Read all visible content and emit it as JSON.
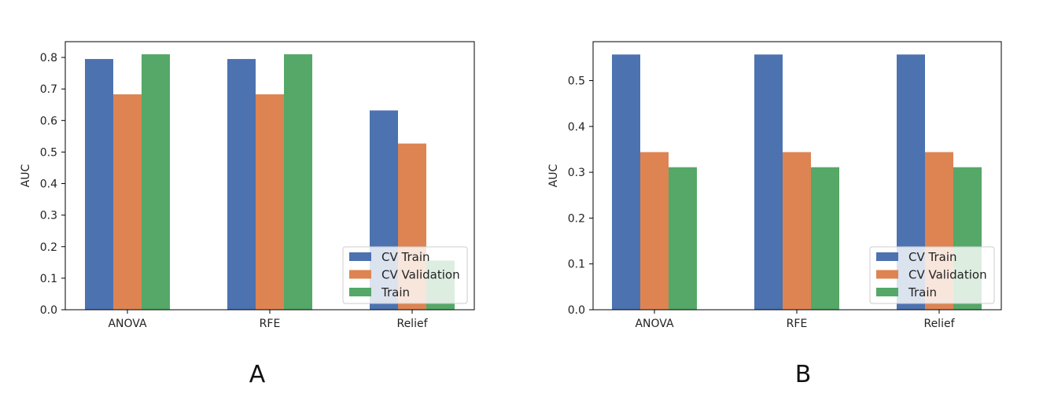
{
  "chart_data": [
    {
      "type": "bar",
      "panel_label": "A",
      "categories": [
        "ANOVA",
        "RFE",
        "Relief"
      ],
      "series": [
        {
          "name": "CV Train",
          "values": [
            0.795,
            0.795,
            0.632
          ]
        },
        {
          "name": "CV Validation",
          "values": [
            0.683,
            0.683,
            0.527
          ]
        },
        {
          "name": "Train",
          "values": [
            0.81,
            0.81,
            0.156
          ]
        }
      ],
      "ylabel": "AUC",
      "xlabel": "",
      "ylim": [
        0,
        0.85
      ],
      "yticks": [
        0.0,
        0.1,
        0.2,
        0.3,
        0.4,
        0.5,
        0.6,
        0.7,
        0.8
      ],
      "ytick_labels": [
        "0.0",
        "0.1",
        "0.2",
        "0.3",
        "0.4",
        "0.5",
        "0.6",
        "0.7",
        "0.8"
      ],
      "legend_position": "lower-right",
      "grid": false
    },
    {
      "type": "bar",
      "panel_label": "B",
      "categories": [
        "ANOVA",
        "RFE",
        "Relief"
      ],
      "series": [
        {
          "name": "CV Train",
          "values": [
            0.557,
            0.557,
            0.557
          ]
        },
        {
          "name": "CV Validation",
          "values": [
            0.344,
            0.344,
            0.344
          ]
        },
        {
          "name": "Train",
          "values": [
            0.311,
            0.311,
            0.311
          ]
        }
      ],
      "ylabel": "AUC",
      "xlabel": "",
      "ylim": [
        0,
        0.585
      ],
      "yticks": [
        0.0,
        0.1,
        0.2,
        0.3,
        0.4,
        0.5
      ],
      "ytick_labels": [
        "0.0",
        "0.1",
        "0.2",
        "0.3",
        "0.4",
        "0.5"
      ],
      "legend_position": "lower-right",
      "grid": false
    }
  ],
  "colors": {
    "CV Train": "#4c72b0",
    "CV Validation": "#dd8452",
    "Train": "#55a868",
    "axis": "#000000"
  }
}
